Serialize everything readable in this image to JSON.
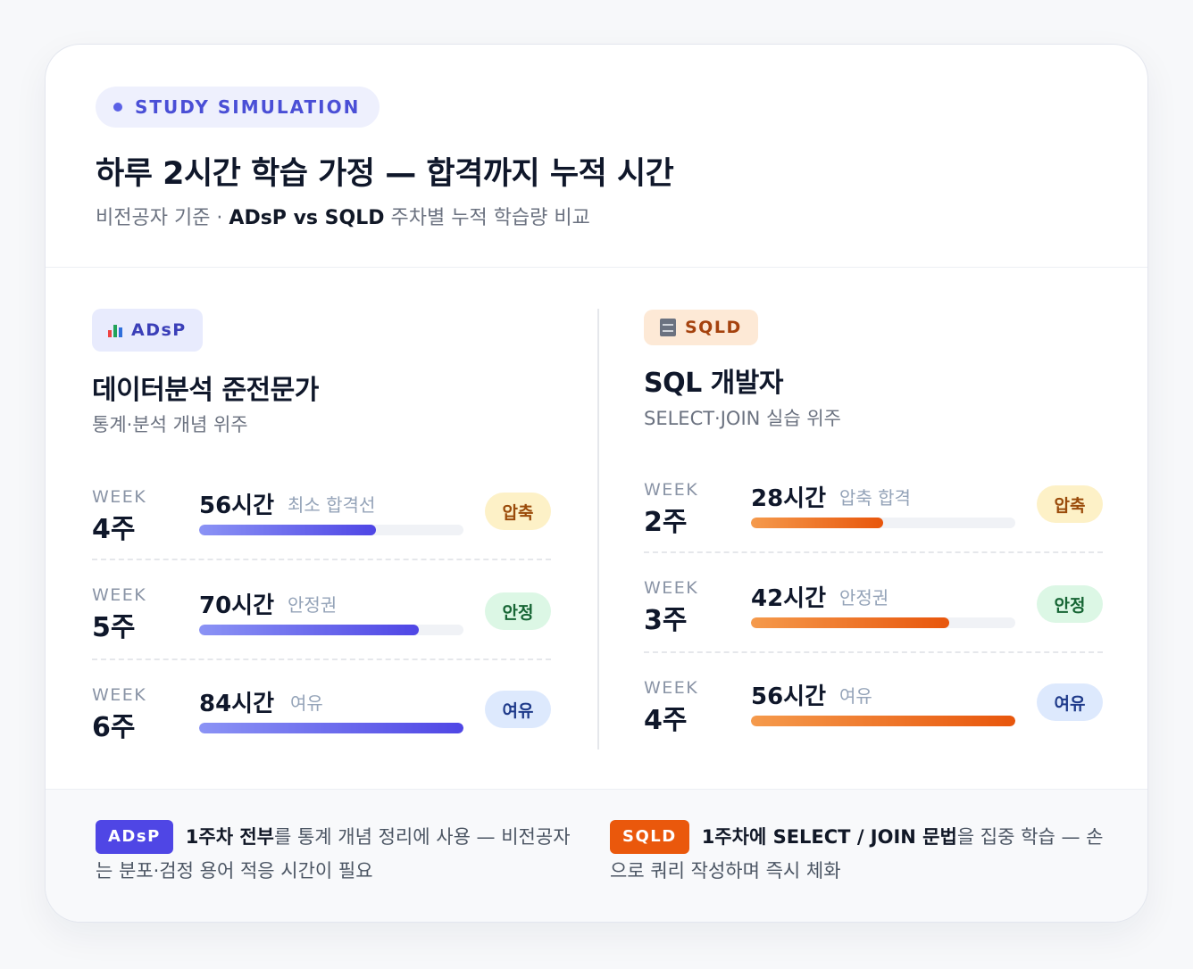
{
  "header": {
    "pill_text": "STUDY SIMULATION",
    "title": "하루 2시간 학습 가정 — 합격까지 누적 시간",
    "subtitle_prefix": "비전공자 기준 · ",
    "subtitle_bold": "ADsP vs SQLD",
    "subtitle_suffix": " 주차별 누적 학습량 비교"
  },
  "adsp": {
    "badge_icon": "bar-chart-icon",
    "badge_label": "ADsP",
    "title": "데이터분석 준전문가",
    "subtitle": "통계·분석 개념 위주",
    "rows": [
      {
        "week_label": "WEEK",
        "week_value": "4주",
        "hours": "56시간",
        "note": "최소 합격선",
        "progress": 0.67,
        "status": "압축"
      },
      {
        "week_label": "WEEK",
        "week_value": "5주",
        "hours": "70시간",
        "note": "안정권",
        "progress": 0.83,
        "status": "안정"
      },
      {
        "week_label": "WEEK",
        "week_value": "6주",
        "hours": "84시간",
        "note": "여유",
        "progress": 1.0,
        "status": "여유"
      }
    ]
  },
  "sqld": {
    "badge_icon": "file-cabinet-icon",
    "badge_label": "SQLD",
    "title": "SQL 개발자",
    "subtitle": "SELECT·JOIN 실습 위주",
    "rows": [
      {
        "week_label": "WEEK",
        "week_value": "2주",
        "hours": "28시간",
        "note": "압축 합격",
        "progress": 0.5,
        "status": "압축"
      },
      {
        "week_label": "WEEK",
        "week_value": "3주",
        "hours": "42시간",
        "note": "안정권",
        "progress": 0.75,
        "status": "안정"
      },
      {
        "week_label": "WEEK",
        "week_value": "4주",
        "hours": "56시간",
        "note": "여유",
        "progress": 1.0,
        "status": "여유"
      }
    ]
  },
  "footer": {
    "adsp": {
      "tag": "ADsP",
      "bold": "1주차 전부",
      "text": "를 통계 개념 정리에 사용 — 비전공자는 분포·검정 용어 적응 시간이 필요"
    },
    "sqld": {
      "tag": "SQLD",
      "bold": "1주차에 SELECT / JOIN 문법",
      "text": "을 집중 학습 — 손으로 쿼리 작성하며 즉시 체화"
    }
  },
  "colors": {
    "accent_indigo": "#4f46e5",
    "accent_orange": "#ea580c",
    "status_compressed": "#fdf1c7",
    "status_stable": "#dcf7e5",
    "status_spare": "#dde9fd"
  }
}
